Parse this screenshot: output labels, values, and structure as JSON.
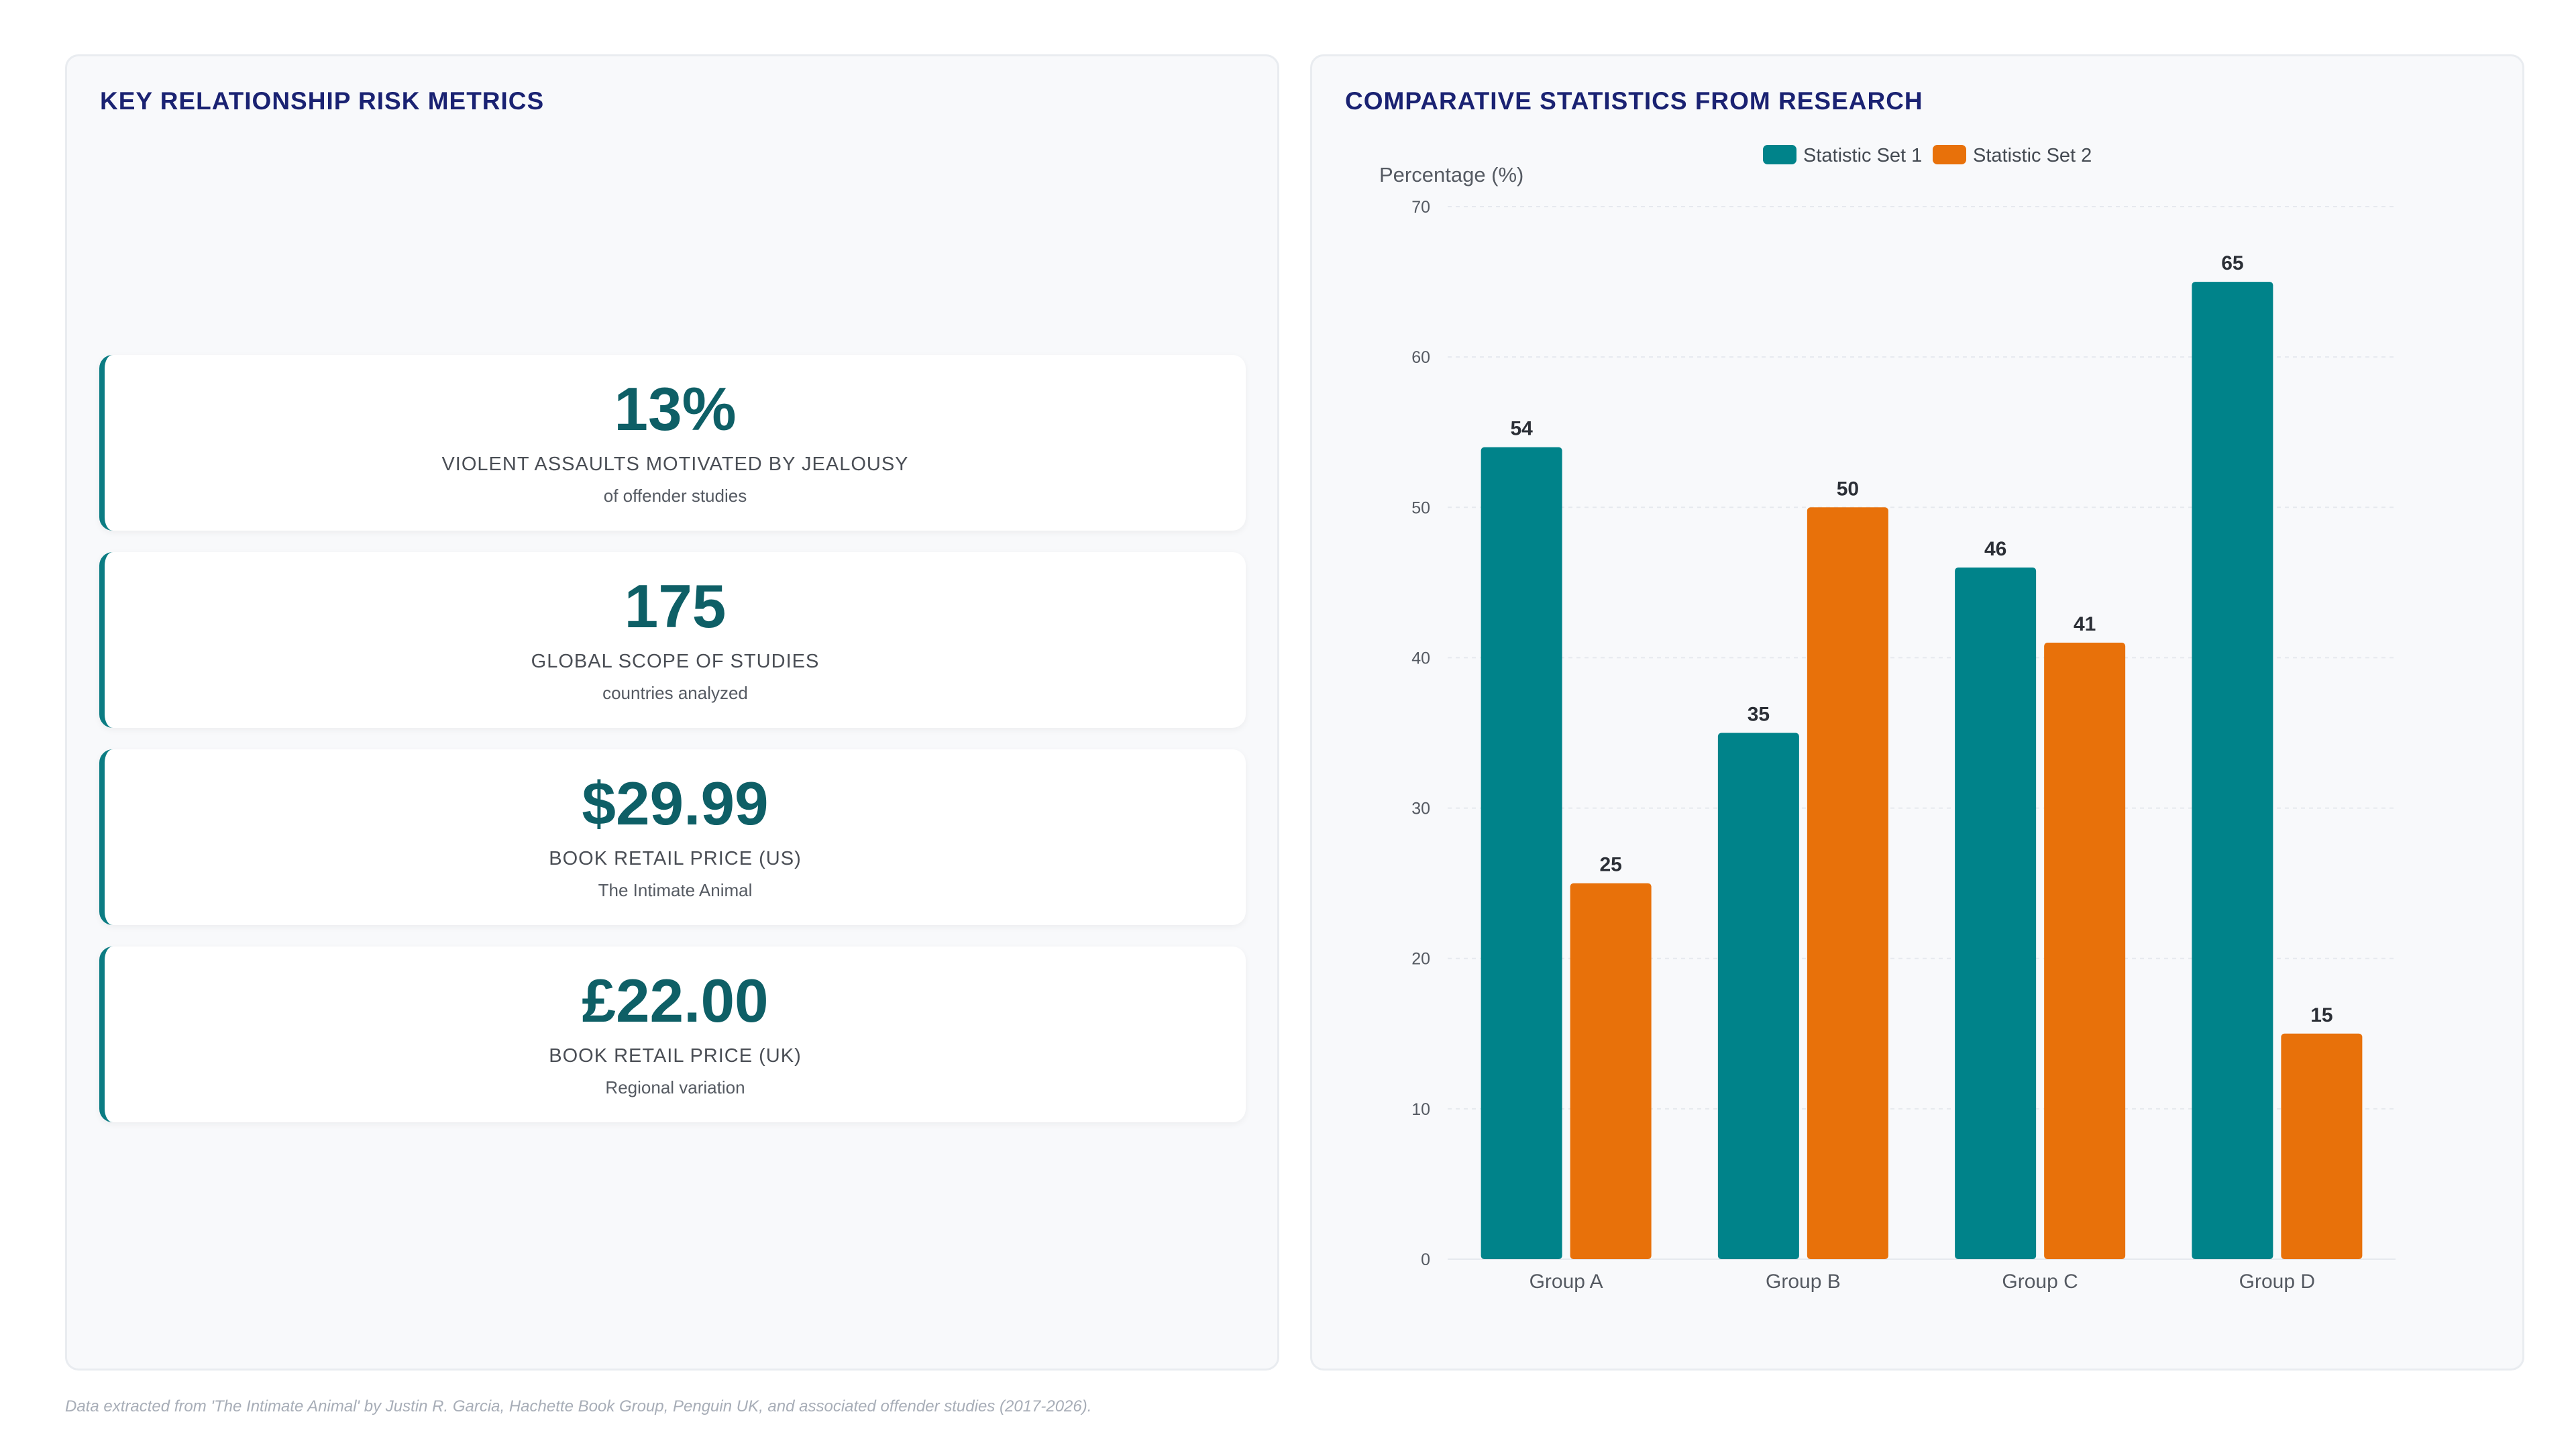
{
  "left_panel": {
    "title": "KEY RELATIONSHIP RISK METRICS",
    "metrics": [
      {
        "value": "13%",
        "label": "VIOLENT ASSAULTS MOTIVATED BY JEALOUSY",
        "sub": "of offender studies"
      },
      {
        "value": "175",
        "label": "GLOBAL SCOPE OF STUDIES",
        "sub": "countries analyzed"
      },
      {
        "value": "$29.99",
        "label": "BOOK RETAIL PRICE (US)",
        "sub": "The Intimate Animal"
      },
      {
        "value": "£22.00",
        "label": "BOOK RETAIL PRICE (UK)",
        "sub": "Regional variation"
      }
    ]
  },
  "right_panel": {
    "title": "COMPARATIVE STATISTICS FROM RESEARCH"
  },
  "chart_data": {
    "type": "bar",
    "title": "COMPARATIVE STATISTICS FROM RESEARCH",
    "categories": [
      "Group A",
      "Group B",
      "Group C",
      "Group D"
    ],
    "series": [
      {
        "name": "Statistic Set 1",
        "values": [
          54,
          35,
          46,
          65
        ],
        "color": "#00838a"
      },
      {
        "name": "Statistic Set 2",
        "values": [
          25,
          50,
          41,
          15
        ],
        "color": "#e8710a"
      }
    ],
    "ylabel": "Percentage (%)",
    "xlabel": "",
    "ylim": [
      0,
      70
    ],
    "yticks": [
      0,
      10,
      20,
      30,
      40,
      50,
      60,
      70
    ],
    "grid": true,
    "legend": "top-center",
    "data_labels": true
  },
  "footnote": "Data extracted from 'The Intimate Animal' by Justin R. Garcia, Hachette Book Group, Penguin UK, and associated offender studies (2017-2026)."
}
